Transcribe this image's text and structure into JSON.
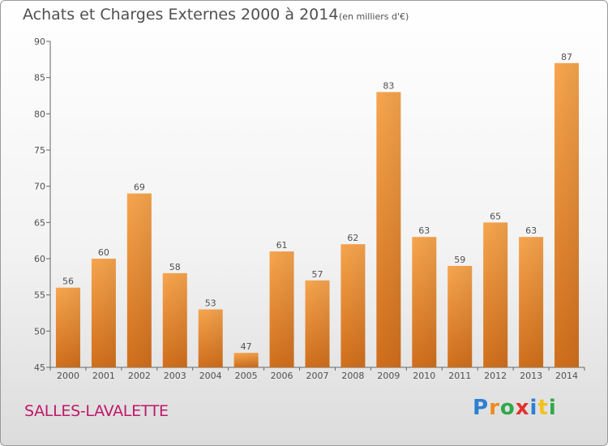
{
  "chart_data": {
    "type": "bar",
    "title": "Achats et Charges Externes 2000 à 2014",
    "subtitle": "(en milliers d'€)",
    "categories": [
      "2000",
      "2001",
      "2002",
      "2003",
      "2004",
      "2005",
      "2006",
      "2007",
      "2008",
      "2009",
      "2010",
      "2011",
      "2012",
      "2013",
      "2014"
    ],
    "values": [
      56,
      60,
      69,
      58,
      53,
      47,
      61,
      57,
      62,
      83,
      63,
      59,
      65,
      63,
      87
    ],
    "ylim": [
      45,
      90
    ],
    "yticks": [
      45,
      50,
      55,
      60,
      65,
      70,
      75,
      80,
      85,
      90
    ],
    "grid": false,
    "legend": "none",
    "bar_color_top": "#f7a54e",
    "bar_color_bottom": "#d06f1c"
  },
  "footer": {
    "commune": "SALLES-LAVALETTE",
    "brand": "Proxiti",
    "brand_colors": [
      "#2d7fd1",
      "#f08a1c",
      "#2fa84a",
      "#e3312d",
      "#2d7fd1",
      "#f2c21c",
      "#2fa84a"
    ]
  }
}
